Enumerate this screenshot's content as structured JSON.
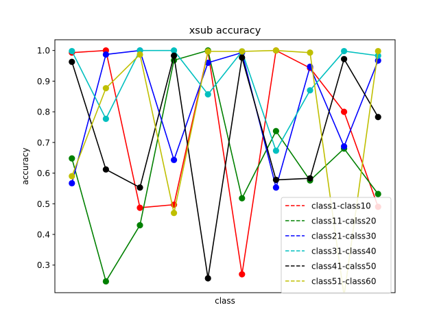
{
  "chart_data": {
    "type": "line",
    "title": "xsub accuracy",
    "xlabel": "class",
    "ylabel": "accuracy",
    "x": [
      1,
      2,
      3,
      4,
      5,
      6,
      7,
      8,
      9,
      10
    ],
    "xlim": [
      0.5,
      10.5
    ],
    "ylim": [
      0.21,
      1.035
    ],
    "yticks": [
      0.3,
      0.4,
      0.5,
      0.6,
      0.7,
      0.8,
      0.9,
      1.0
    ],
    "ytick_labels": [
      "0.3",
      "0.4",
      "0.5",
      "0.6",
      "0.7",
      "0.8",
      "0.9",
      "1.0"
    ],
    "grid": false,
    "legend_position": "bottom-right",
    "series": [
      {
        "name": "class1-class10",
        "color": "#ff0000",
        "values": [
          0.993,
          1.0,
          0.487,
          0.497,
          0.997,
          0.27,
          1.0,
          0.943,
          0.8,
          0.49
        ]
      },
      {
        "name": "class11-calss20",
        "color": "#008000",
        "values": [
          0.648,
          0.247,
          0.43,
          0.968,
          1.0,
          0.518,
          0.737,
          0.576,
          0.68,
          0.532
        ]
      },
      {
        "name": "class21-calss30",
        "color": "#0000ff",
        "values": [
          0.567,
          0.987,
          1.0,
          0.643,
          0.96,
          0.993,
          0.553,
          0.947,
          0.687,
          0.967
        ]
      },
      {
        "name": "class31-class40",
        "color": "#00bfbf",
        "values": [
          0.998,
          0.777,
          1.0,
          1.0,
          0.857,
          0.997,
          0.673,
          0.87,
          0.998,
          0.983
        ]
      },
      {
        "name": "class41-calss50",
        "color": "#000000",
        "values": [
          0.963,
          0.612,
          0.553,
          0.983,
          0.257,
          0.977,
          0.578,
          0.583,
          0.972,
          0.783
        ]
      },
      {
        "name": "class51-class60",
        "color": "#bfbf00",
        "values": [
          0.59,
          0.877,
          0.987,
          0.47,
          0.997,
          0.997,
          1.0,
          0.993,
          0.2,
          0.998
        ]
      }
    ]
  }
}
